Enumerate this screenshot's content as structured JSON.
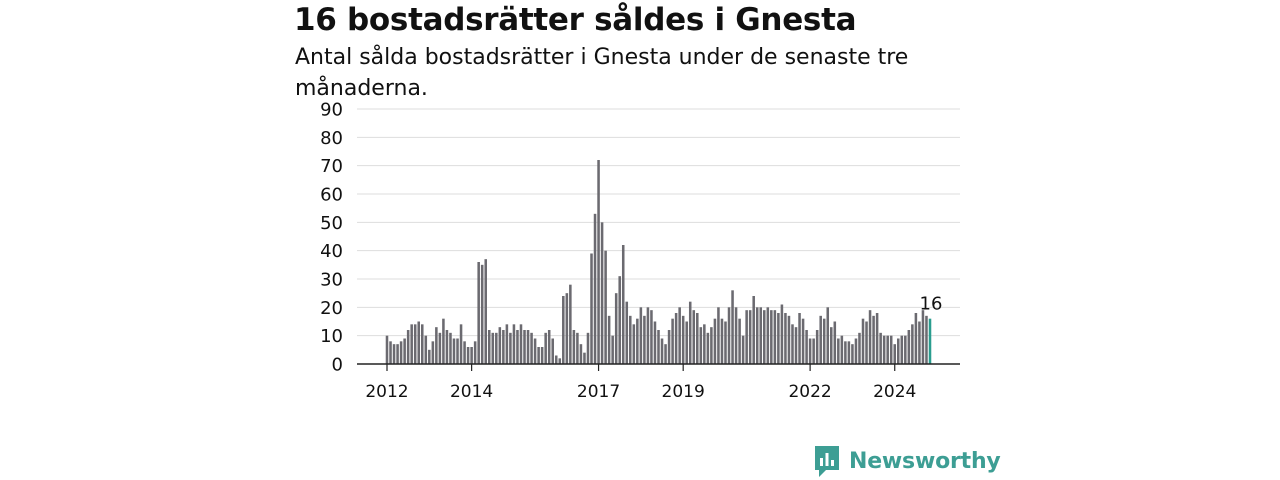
{
  "header": {
    "title": "16 bostadsrätter såldes i Gnesta",
    "subtitle": "Antal sålda bostadsrätter i Gnesta under de senaste tre månaderna."
  },
  "brand": {
    "name": "Newsworthy",
    "color": "#3d9e94",
    "icon": "newsworthy-logo-icon"
  },
  "chart_data": {
    "type": "bar",
    "title": "16 bostadsrätter såldes i Gnesta",
    "subtitle": "Antal sålda bostadsrätter i Gnesta under de senaste tre månaderna.",
    "ylim": [
      0,
      90
    ],
    "yticks": [
      0,
      10,
      20,
      30,
      40,
      50,
      60,
      70,
      80,
      90
    ],
    "xticks": [
      "2012",
      "2014",
      "2017",
      "2019",
      "2022",
      "2024"
    ],
    "x_start": "2012-01",
    "x_end": "2025-05",
    "bar_color": "#6b6a70",
    "highlight_color": "#2a9d8f",
    "grid": true,
    "annotation": {
      "label": "16",
      "value": 16
    },
    "values": [
      10,
      8,
      7,
      7,
      8,
      9,
      12,
      14,
      14,
      15,
      14,
      10,
      5,
      8,
      13,
      11,
      16,
      12,
      11,
      9,
      9,
      14,
      8,
      6,
      6,
      8,
      36,
      35,
      37,
      12,
      11,
      11,
      13,
      12,
      14,
      11,
      14,
      12,
      14,
      12,
      12,
      11,
      9,
      6,
      6,
      11,
      12,
      9,
      3,
      2,
      24,
      25,
      28,
      12,
      11,
      7,
      4,
      11,
      39,
      53,
      72,
      50,
      40,
      17,
      10,
      25,
      31,
      42,
      22,
      17,
      14,
      16,
      20,
      17,
      20,
      19,
      15,
      12,
      9,
      7,
      12,
      16,
      18,
      20,
      17,
      15,
      22,
      19,
      18,
      13,
      14,
      11,
      13,
      16,
      20,
      16,
      15,
      20,
      26,
      20,
      16,
      10,
      19,
      19,
      24,
      20,
      20,
      19,
      20,
      19,
      19,
      18,
      21,
      18,
      17,
      14,
      13,
      18,
      16,
      12,
      9,
      9,
      12,
      17,
      16,
      20,
      13,
      15,
      9,
      10,
      8,
      8,
      7,
      9,
      11,
      16,
      15,
      19,
      17,
      18,
      11,
      10,
      10,
      10,
      7,
      9,
      10,
      10,
      12,
      14,
      18,
      15,
      19,
      17,
      16
    ]
  }
}
